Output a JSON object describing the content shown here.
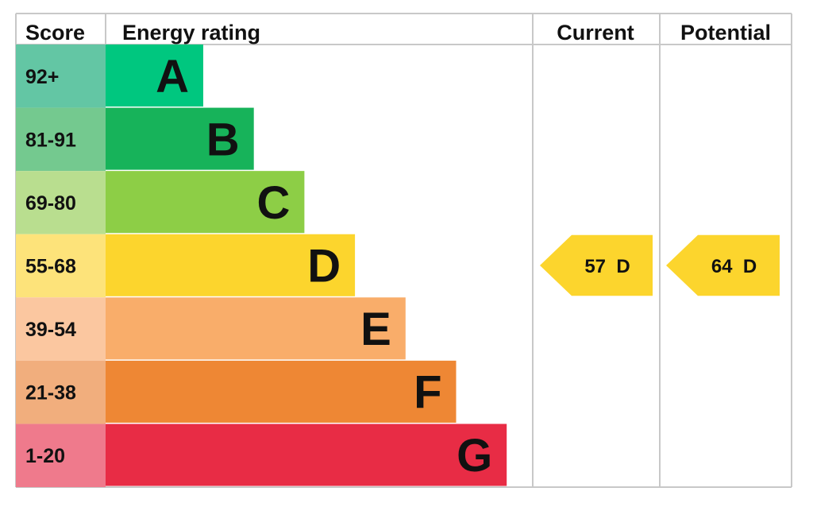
{
  "headers": {
    "score": "Score",
    "energy_rating": "Energy rating",
    "current": "Current",
    "potential": "Potential"
  },
  "chart_data": {
    "type": "bar",
    "categories": [
      "A",
      "B",
      "C",
      "D",
      "E",
      "F",
      "G"
    ],
    "bands": [
      {
        "letter": "A",
        "score": "92+",
        "color": "#00c77f",
        "score_color": "#63c6a4"
      },
      {
        "letter": "B",
        "score": "81-91",
        "color": "#17b35a",
        "score_color": "#74c98f"
      },
      {
        "letter": "C",
        "score": "69-80",
        "color": "#8dce46",
        "score_color": "#b9de8f"
      },
      {
        "letter": "D",
        "score": "55-68",
        "color": "#fcd52d",
        "score_color": "#fde37a"
      },
      {
        "letter": "E",
        "score": "39-54",
        "color": "#f9ad6a",
        "score_color": "#fbc7a0"
      },
      {
        "letter": "F",
        "score": "21-38",
        "color": "#ee8734",
        "score_color": "#f1ae7d"
      },
      {
        "letter": "G",
        "score": "1-20",
        "color": "#e82c45",
        "score_color": "#ef7a8c"
      }
    ],
    "current": {
      "value": 57,
      "letter": "D",
      "label": "57  D",
      "color": "#fcd52d"
    },
    "potential": {
      "value": 64,
      "letter": "D",
      "label": "64  D",
      "color": "#fcd52d"
    }
  }
}
